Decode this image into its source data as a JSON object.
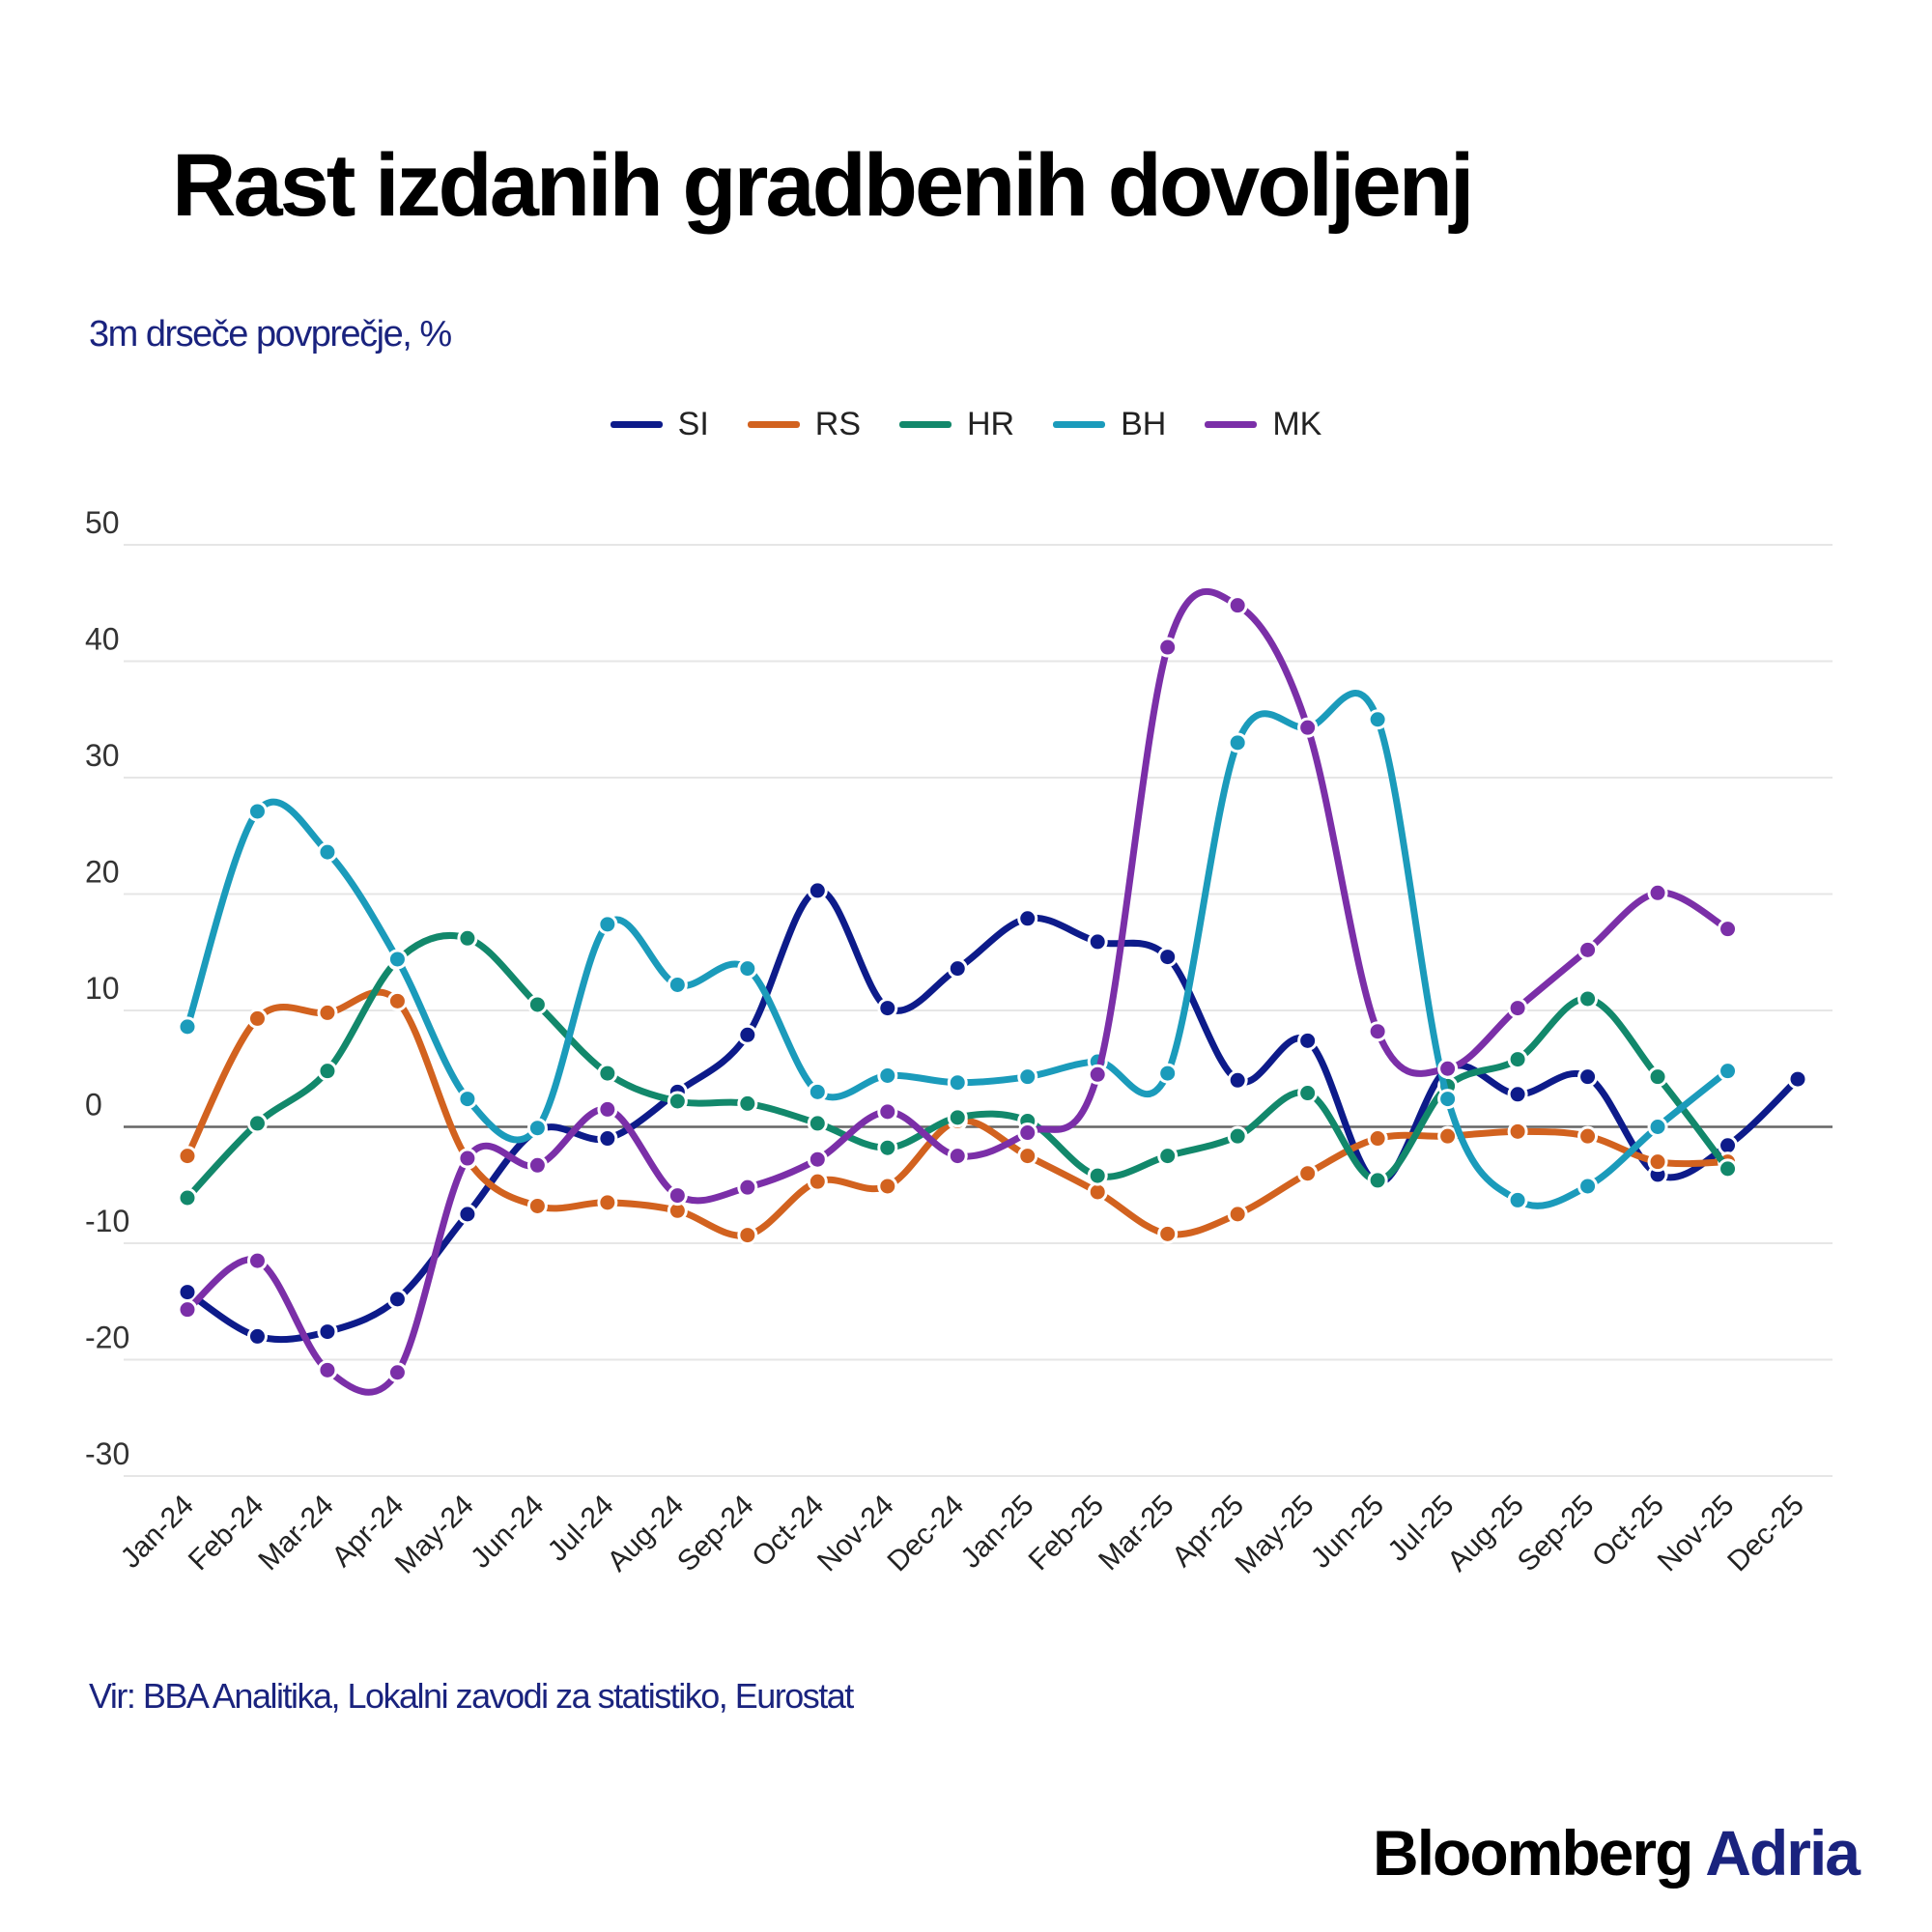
{
  "chart_data": {
    "type": "line",
    "title": "Rast izdanih gradbenih dovoljenj",
    "subtitle": "3m drseče povprečje, %",
    "source": "Vir: BBA Analitika, Lokalni zavodi za statistiko, Eurostat",
    "xlabel": "",
    "ylabel": "",
    "ylim": [
      -30,
      50
    ],
    "yticks": [
      50,
      40,
      30,
      20,
      10,
      0,
      -10,
      -20,
      -30
    ],
    "grid": true,
    "legend_position": "top-center",
    "categories": [
      "Jan-24",
      "Feb-24",
      "Mar-24",
      "Apr-24",
      "May-24",
      "Jun-24",
      "Jul-24",
      "Aug-24",
      "Sep-24",
      "Oct-24",
      "Nov-24",
      "Dec-24",
      "Jan-25",
      "Feb-25",
      "Mar-25",
      "Apr-25",
      "May-25",
      "Jun-25",
      "Jul-25",
      "Aug-25",
      "Sep-25",
      "Oct-25",
      "Nov-25",
      "Dec-25"
    ],
    "series": [
      {
        "name": "SI",
        "color": "#0d1b8a",
        "values": [
          -14.2,
          -18,
          -17.6,
          -14.8,
          -7.5,
          -0.3,
          -1,
          3,
          7.9,
          20.3,
          10.2,
          13.6,
          17.9,
          15.9,
          14.6,
          4,
          7.4,
          -4.8,
          5,
          2.8,
          4.3,
          -4.1,
          -1.6,
          4.1
        ]
      },
      {
        "name": "RS",
        "color": "#d2621f",
        "values": [
          -2.5,
          9.3,
          9.8,
          10.8,
          -2.8,
          -6.8,
          -6.5,
          -7.2,
          -9.3,
          -4.7,
          -5.1,
          0.5,
          -2.5,
          -5.6,
          -9.2,
          -7.5,
          -4,
          -1,
          -0.8,
          -0.4,
          -0.8,
          -3,
          -3,
          null
        ]
      },
      {
        "name": "HR",
        "color": "#12886b",
        "values": [
          -6.1,
          0.3,
          4.8,
          14.3,
          16.2,
          10.5,
          4.6,
          2.2,
          2,
          0.3,
          -1.8,
          0.8,
          0.5,
          -4.2,
          -2.5,
          -0.8,
          2.9,
          -4.6,
          3.5,
          5.8,
          11,
          4.3,
          -3.6,
          null
        ]
      },
      {
        "name": "BH",
        "color": "#1b9bbb",
        "values": [
          8.6,
          27.1,
          23.6,
          14.4,
          2.4,
          -0.1,
          17.4,
          12.2,
          13.6,
          3,
          4.4,
          3.8,
          4.3,
          5.6,
          4.6,
          33,
          34.3,
          35,
          2.4,
          -6.3,
          -5.1,
          0,
          4.8,
          null
        ]
      },
      {
        "name": "MK",
        "color": "#7b2fa8",
        "values": [
          -15.7,
          -11.5,
          -20.9,
          -21.1,
          -2.7,
          -3.3,
          1.5,
          -5.9,
          -5.2,
          -2.8,
          1.3,
          -2.5,
          -0.5,
          4.5,
          41.2,
          44.8,
          34.3,
          8.2,
          5,
          10.2,
          15.2,
          20.1,
          17,
          null
        ]
      }
    ]
  },
  "brand": {
    "name": "Bloomberg",
    "suffix": "Adria"
  }
}
